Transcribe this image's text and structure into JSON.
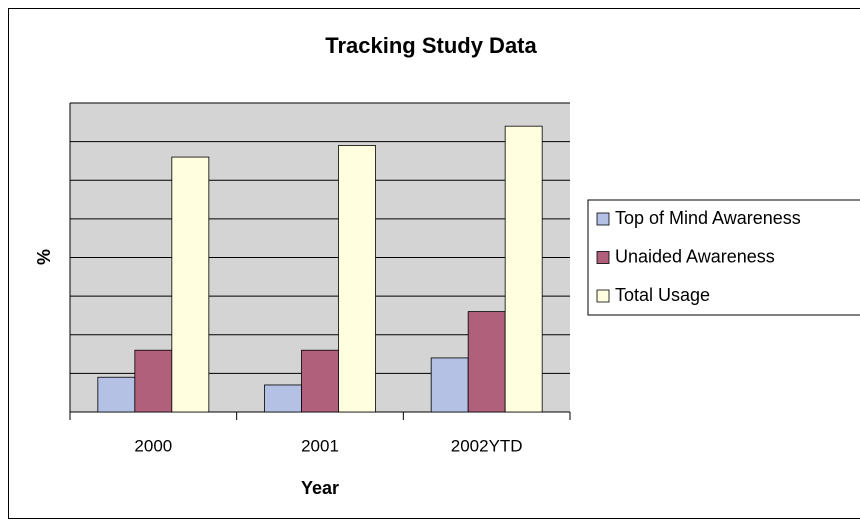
{
  "chart_data": {
    "type": "bar",
    "title": "Tracking Study Data",
    "x_label": "Year",
    "y_label": "%",
    "categories": [
      "2000",
      "2001",
      "2002YTD"
    ],
    "series": [
      {
        "name": "Top of Mind Awareness",
        "color": "#b4c0e4",
        "values": [
          9,
          7,
          14
        ]
      },
      {
        "name": "Unaided Awareness",
        "color": "#b0607a",
        "values": [
          16,
          16,
          26
        ]
      },
      {
        "name": "Total Usage",
        "color": "#ffffe0",
        "values": [
          66,
          69,
          74
        ]
      }
    ],
    "ylim": [
      0,
      80
    ],
    "yticks": [
      0,
      10,
      20,
      30,
      40,
      50,
      60,
      70,
      80
    ],
    "grid": true,
    "legend": "right"
  }
}
